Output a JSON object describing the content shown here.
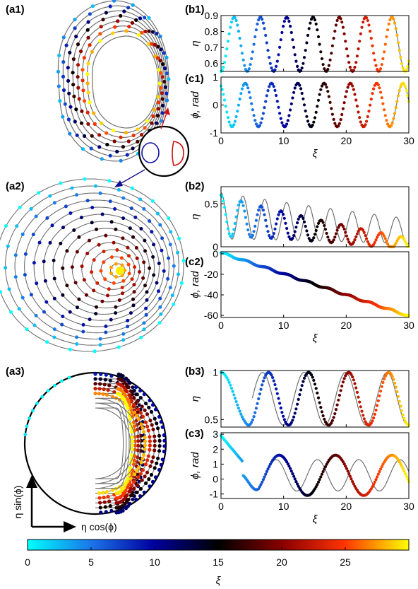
{
  "colormap": [
    "#00ffff",
    "#1a73e8",
    "#0000a0",
    "#000000",
    "#8b0000",
    "#ff3300",
    "#ffff00"
  ],
  "curve_color": "#707070",
  "colorbar": {
    "xlabel": "ξ",
    "ticks": [
      0,
      5,
      10,
      15,
      20,
      25
    ],
    "range": [
      0,
      30
    ]
  },
  "phase_axes": {
    "ylabel": "η sin(ϕ)",
    "xlabel": "η cos(ϕ)"
  },
  "chart_data": [
    {
      "id": "a1",
      "label": "(a1)",
      "type": "line",
      "kind": "phase-plane"
    },
    {
      "id": "a2",
      "label": "(a2)",
      "type": "line",
      "kind": "phase-plane"
    },
    {
      "id": "a3",
      "label": "(a3)",
      "type": "line",
      "kind": "phase-plane"
    },
    {
      "id": "b1",
      "label": "(b1)",
      "type": "scatter",
      "ylabel": "η",
      "xlabel": "",
      "xlim": [
        0,
        30
      ],
      "ylim": [
        0.55,
        0.9
      ],
      "xticks": [
        0,
        10,
        20,
        30
      ],
      "yticks": [
        "0.6",
        "0.7",
        "0.8",
        "0.9"
      ],
      "shows_xticks": false
    },
    {
      "id": "c1",
      "label": "(c1)",
      "type": "scatter",
      "ylabel": "ϕ, rad",
      "xlabel": "ξ",
      "xlim": [
        0,
        30
      ],
      "ylim": [
        -1,
        1
      ],
      "xticks": [
        "0",
        "10",
        "20",
        "30"
      ],
      "yticks": [
        "-1",
        "0",
        "1"
      ],
      "shows_xticks": true
    },
    {
      "id": "b2",
      "label": "(b2)",
      "type": "scatter",
      "ylabel": "η",
      "xlabel": "",
      "xlim": [
        0,
        30
      ],
      "ylim": [
        0,
        0.7
      ],
      "xticks": [
        0,
        10,
        20,
        30
      ],
      "yticks": [
        "0",
        "0.5"
      ],
      "shows_xticks": false
    },
    {
      "id": "c2",
      "label": "(c2)",
      "type": "scatter",
      "ylabel": "ϕ, rad",
      "xlabel": "ξ",
      "xlim": [
        0,
        30
      ],
      "ylim": [
        -62,
        2
      ],
      "xticks": [
        "0",
        "10",
        "20",
        "30"
      ],
      "yticks": [
        "0",
        "-20",
        "-40",
        "-60"
      ],
      "shows_xticks": true
    },
    {
      "id": "b3",
      "label": "(b3)",
      "type": "scatter",
      "ylabel": "η",
      "xlabel": "",
      "xlim": [
        0,
        30
      ],
      "ylim": [
        0.42,
        1.02
      ],
      "xticks": [
        0,
        10,
        20,
        30
      ],
      "yticks": [
        "0.5",
        "1"
      ],
      "shows_xticks": false
    },
    {
      "id": "c3",
      "label": "(c3)",
      "type": "scatter",
      "ylabel": "ϕ, rad",
      "xlabel": "ξ",
      "xlim": [
        0,
        30
      ],
      "ylim": [
        -1.3,
        3.1
      ],
      "xticks": [
        "0",
        "10",
        "20",
        "30"
      ],
      "yticks": [
        "-1",
        "0",
        "1",
        "2",
        "3"
      ],
      "shows_xticks": true
    }
  ]
}
